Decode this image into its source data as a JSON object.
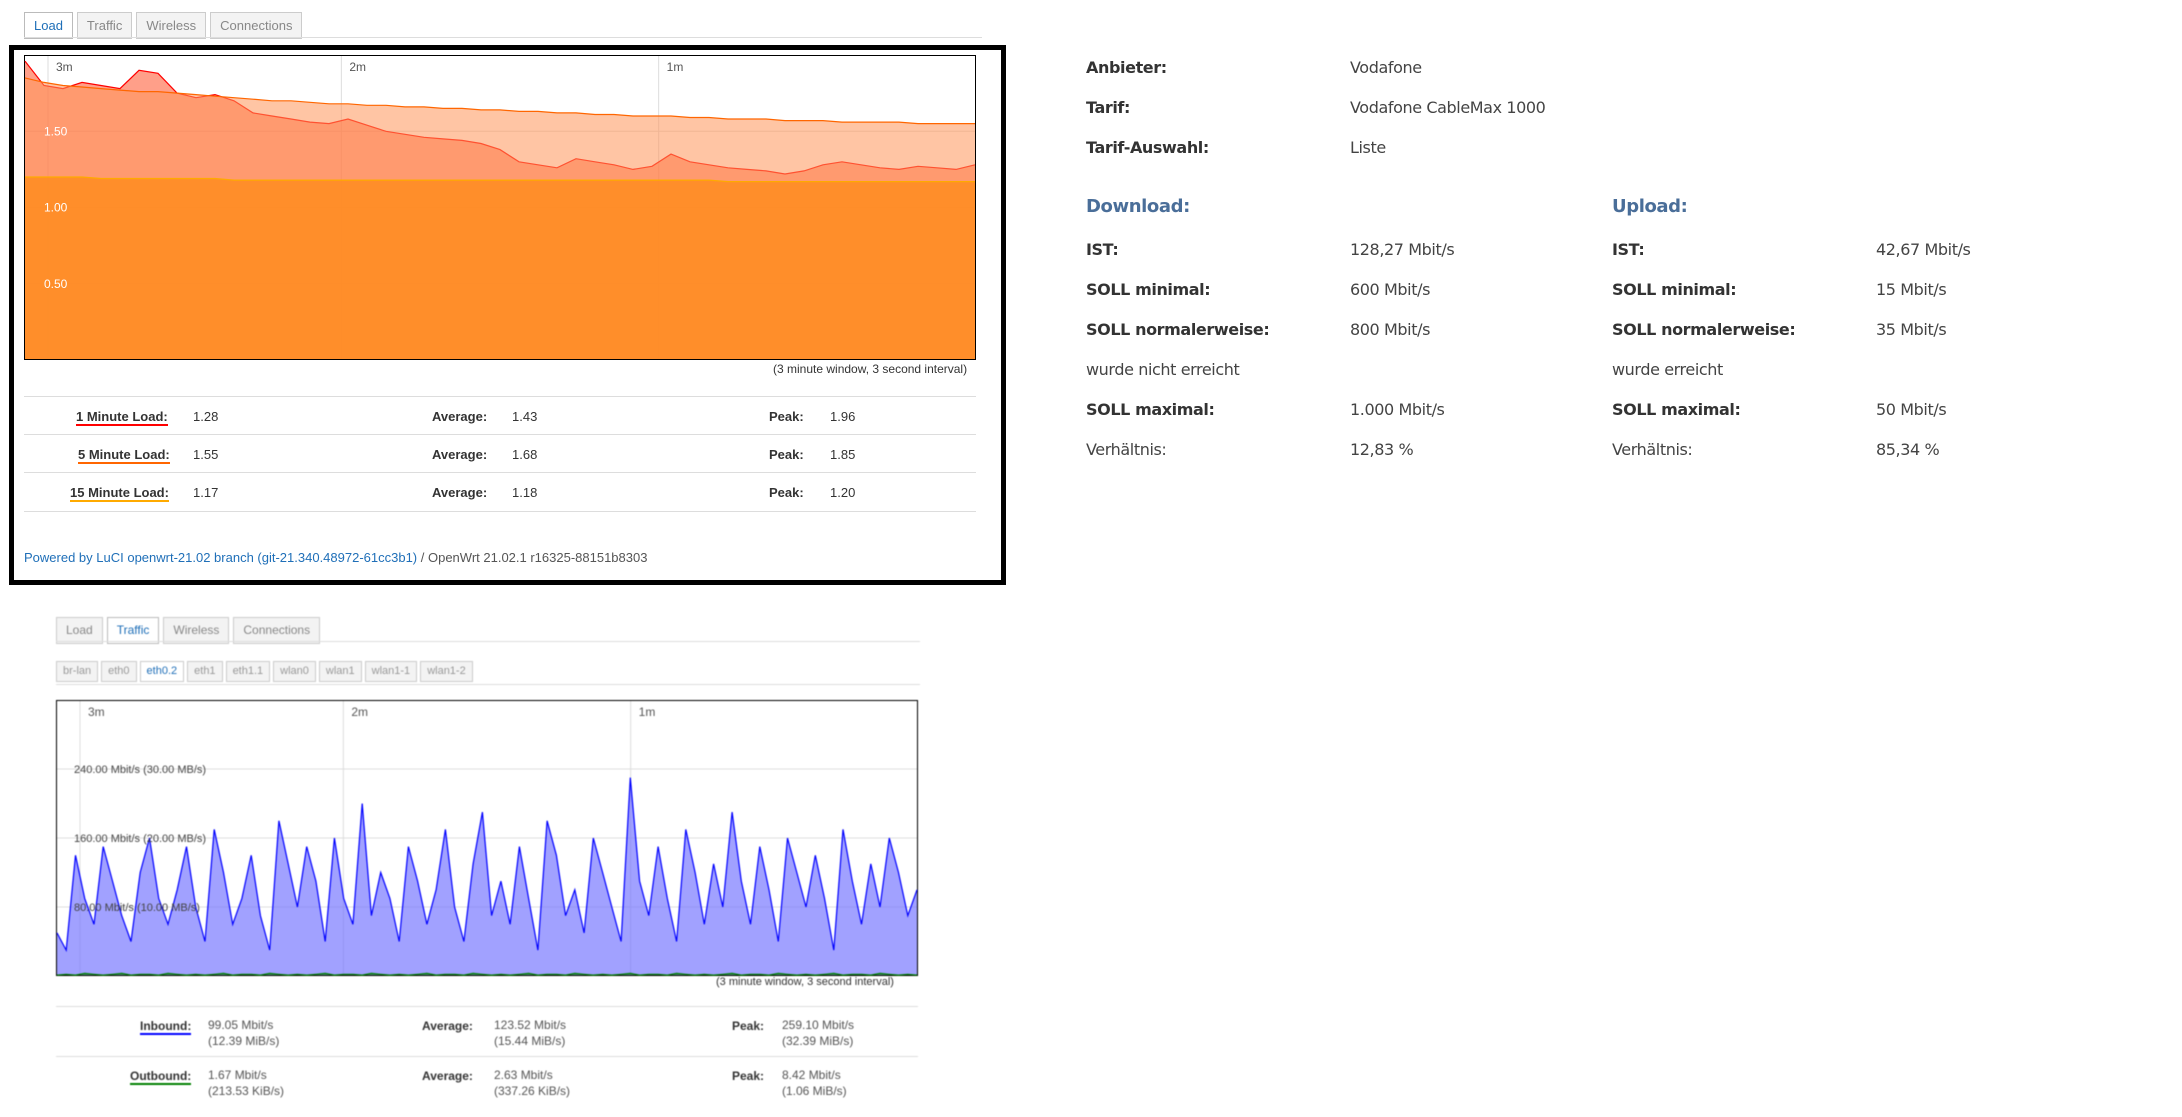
{
  "top_tabs": [
    "Load",
    "Traffic",
    "Wireless",
    "Connections"
  ],
  "load": {
    "time_labels": [
      "3m",
      "2m",
      "1m"
    ],
    "y_labels": [
      "1.50",
      "1.00",
      "0.50"
    ],
    "window_note": "(3 minute window, 3 second interval)",
    "colors": {
      "one": "#ff0000",
      "five": "#ff6600",
      "fifteen": "#ffaa00"
    },
    "rows": [
      {
        "label": "1 Minute Load:",
        "value": "1.28",
        "avg_label": "Average:",
        "avg": "1.43",
        "peak_label": "Peak:",
        "peak": "1.96"
      },
      {
        "label": "5 Minute Load:",
        "value": "1.55",
        "avg_label": "Average:",
        "avg": "1.68",
        "peak_label": "Peak:",
        "peak": "1.85"
      },
      {
        "label": "15 Minute Load:",
        "value": "1.17",
        "avg_label": "Average:",
        "avg": "1.18",
        "peak_label": "Peak:",
        "peak": "1.20"
      }
    ],
    "footer_link": "Powered by LuCI openwrt-21.02 branch (git-21.340.48972-61cc3b1)",
    "footer_text": " / OpenWrt 21.02.1 r16325-88151b8303"
  },
  "traffic": {
    "tabs": [
      "Load",
      "Traffic",
      "Wireless",
      "Connections"
    ],
    "ifaces": [
      "br-lan",
      "eth0",
      "eth0.2",
      "eth1",
      "eth1.1",
      "wlan0",
      "wlan1",
      "wlan1-1",
      "wlan1-2"
    ],
    "time_labels": [
      "3m",
      "2m",
      "1m"
    ],
    "y_labels": [
      "240.00 Mbit/s (30.00 MB/s)",
      "160.00 Mbit/s (20.00 MB/s)",
      "80.00 Mbit/s (10.00 MB/s)"
    ],
    "window_note": "(3 minute window, 3 second interval)",
    "colors": {
      "inbound": "#0000ff",
      "outbound": "#008000"
    },
    "rows": [
      {
        "label": "Inbound:",
        "value1": "99.05 Mbit/s",
        "value2": "(12.39 MiB/s)",
        "avg_label": "Average:",
        "avg1": "123.52 Mbit/s",
        "avg2": "(15.44 MiB/s)",
        "peak_label": "Peak:",
        "peak1": "259.10 Mbit/s",
        "peak2": "(32.39 MiB/s)"
      },
      {
        "label": "Outbound:",
        "value1": "1.67 Mbit/s",
        "value2": "(213.53 KiB/s)",
        "avg_label": "Average:",
        "avg1": "2.63 Mbit/s",
        "avg2": "(337.26 KiB/s)",
        "peak_label": "Peak:",
        "peak1": "8.42 Mbit/s",
        "peak2": "(1.06 MiB/s)"
      }
    ]
  },
  "info": {
    "provider_label": "Anbieter:",
    "provider": "Vodafone",
    "tariff_label": "Tarif:",
    "tariff": "Vodafone CableMax 1000",
    "tariff_sel_label": "Tarif-Auswahl:",
    "tariff_sel": "Liste",
    "download": {
      "heading": "Download:",
      "ist_label": "IST:",
      "ist": "128,27 Mbit/s",
      "min_label": "SOLL minimal:",
      "min": "600 Mbit/s",
      "norm_label": "SOLL normalerweise:",
      "norm": "800 Mbit/s",
      "status": "wurde nicht erreicht",
      "max_label": "SOLL maximal:",
      "max": "1.000 Mbit/s",
      "ratio_label": "Verhältnis:",
      "ratio": "12,83 %"
    },
    "upload": {
      "heading": "Upload:",
      "ist_label": "IST:",
      "ist": "42,67 Mbit/s",
      "min_label": "SOLL minimal:",
      "min": "15 Mbit/s",
      "norm_label": "SOLL normalerweise:",
      "norm": "35 Mbit/s",
      "status": "wurde erreicht",
      "max_label": "SOLL maximal:",
      "max": "50 Mbit/s",
      "ratio_label": "Verhältnis:",
      "ratio": "85,34 %"
    }
  },
  "chart_data": [
    {
      "type": "area",
      "y_range": [
        0,
        2.0
      ],
      "series": [
        {
          "name": "1 Minute Load",
          "values": [
            1.96,
            1.8,
            1.78,
            1.82,
            1.8,
            1.78,
            1.9,
            1.88,
            1.75,
            1.72,
            1.74,
            1.7,
            1.62,
            1.6,
            1.58,
            1.56,
            1.55,
            1.58,
            1.54,
            1.5,
            1.48,
            1.46,
            1.45,
            1.44,
            1.42,
            1.38,
            1.3,
            1.28,
            1.26,
            1.32,
            1.3,
            1.28,
            1.25,
            1.27,
            1.35,
            1.3,
            1.28,
            1.26,
            1.25,
            1.24,
            1.22,
            1.24,
            1.28,
            1.3,
            1.28,
            1.26,
            1.25,
            1.27,
            1.26,
            1.25,
            1.28
          ]
        },
        {
          "name": "5 Minute Load",
          "values": [
            1.85,
            1.82,
            1.8,
            1.79,
            1.78,
            1.77,
            1.76,
            1.76,
            1.75,
            1.74,
            1.73,
            1.72,
            1.71,
            1.7,
            1.7,
            1.69,
            1.68,
            1.68,
            1.67,
            1.67,
            1.66,
            1.66,
            1.65,
            1.65,
            1.64,
            1.64,
            1.63,
            1.63,
            1.62,
            1.62,
            1.61,
            1.61,
            1.6,
            1.6,
            1.6,
            1.59,
            1.59,
            1.58,
            1.58,
            1.58,
            1.57,
            1.57,
            1.57,
            1.56,
            1.56,
            1.56,
            1.56,
            1.55,
            1.55,
            1.55,
            1.55
          ]
        },
        {
          "name": "15 Minute Load",
          "values": [
            1.2,
            1.2,
            1.2,
            1.2,
            1.19,
            1.19,
            1.19,
            1.19,
            1.19,
            1.19,
            1.19,
            1.18,
            1.18,
            1.18,
            1.18,
            1.18,
            1.18,
            1.18,
            1.18,
            1.18,
            1.18,
            1.18,
            1.18,
            1.18,
            1.18,
            1.18,
            1.18,
            1.18,
            1.18,
            1.18,
            1.18,
            1.18,
            1.18,
            1.18,
            1.18,
            1.18,
            1.18,
            1.17,
            1.17,
            1.17,
            1.17,
            1.17,
            1.17,
            1.17,
            1.17,
            1.17,
            1.17,
            1.17,
            1.17,
            1.17,
            1.17
          ]
        }
      ]
    },
    {
      "type": "area",
      "y_unit": "Mbit/s",
      "y_range": [
        0,
        320
      ],
      "series": [
        {
          "name": "Inbound",
          "values": [
            50,
            30,
            140,
            90,
            60,
            150,
            110,
            70,
            40,
            120,
            160,
            90,
            60,
            100,
            150,
            80,
            40,
            170,
            120,
            60,
            90,
            140,
            70,
            30,
            180,
            130,
            80,
            150,
            110,
            40,
            160,
            90,
            60,
            200,
            70,
            120,
            90,
            40,
            150,
            110,
            60,
            100,
            170,
            80,
            40,
            130,
            190,
            70,
            110,
            60,
            150,
            90,
            30,
            180,
            140,
            70,
            100,
            50,
            160,
            120,
            80,
            40,
            230,
            110,
            70,
            150,
            90,
            40,
            170,
            120,
            60,
            130,
            80,
            190,
            110,
            60,
            150,
            100,
            40,
            160,
            120,
            80,
            140,
            90,
            30,
            170,
            110,
            60,
            130,
            80,
            160,
            120,
            70,
            100
          ]
        },
        {
          "name": "Outbound",
          "values": [
            1,
            2,
            1,
            3,
            2,
            1,
            2,
            3,
            1,
            2,
            2,
            1,
            3,
            2,
            1,
            2,
            1,
            2,
            3,
            1,
            2,
            2,
            1,
            3,
            2,
            1,
            2,
            1,
            2,
            3,
            1,
            2,
            2,
            1,
            3,
            2,
            1,
            2,
            1,
            2,
            3,
            1,
            2,
            2,
            1,
            3,
            2,
            1,
            2,
            1,
            2,
            3,
            1,
            2,
            2,
            1,
            3,
            2,
            1,
            2,
            1,
            2,
            3,
            1,
            2,
            2,
            1,
            3,
            2,
            1,
            2,
            1,
            2,
            3,
            1,
            2,
            2,
            1,
            3,
            2,
            1,
            2,
            1,
            2,
            3,
            1,
            2,
            2,
            1,
            3,
            2,
            1,
            2,
            1
          ]
        }
      ]
    }
  ]
}
